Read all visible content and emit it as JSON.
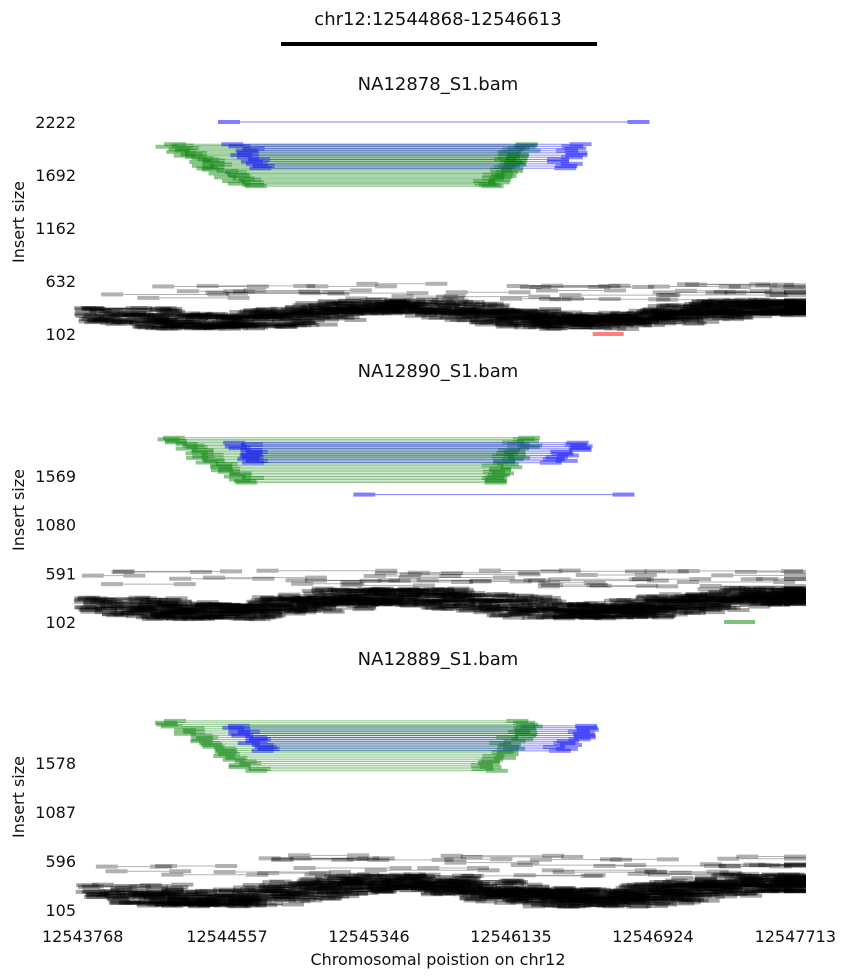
{
  "figure": {
    "title": "chr12:12544868-12546613",
    "xlabel": "Chromosomal poistion on chr12",
    "region": [
      12544868,
      12546613
    ]
  },
  "colors": {
    "normal": "#000000",
    "deletion": "#008000",
    "duplication": "#0000ff",
    "inversion": "#ff0000"
  },
  "chart_data": [
    {
      "type": "scatter",
      "title": "NA12878_S1.bam",
      "ylabel": "Insert size",
      "xlim": [
        12543768,
        12547713
      ],
      "ylim": [
        102,
        2222
      ],
      "x_ticks": [
        12543768,
        12544557,
        12545346,
        12546135,
        12546924,
        12547713
      ],
      "y_ticks": [
        102,
        632,
        1162,
        1692,
        2222
      ],
      "normal_band": [
        180,
        420
      ],
      "split_groups": [
        {
          "type": "deletion",
          "left": [
            12544000,
            12544700
          ],
          "right": [
            12546000,
            12546350
          ],
          "insert": [
            1580,
            2000
          ],
          "count": 34
        },
        {
          "type": "duplication",
          "left": [
            12544560,
            12544750
          ],
          "right": [
            12546400,
            12546600
          ],
          "insert": [
            1760,
            2000
          ],
          "count": 12
        }
      ],
      "special_pairs": [
        {
          "type": "duplication",
          "left": 12544568,
          "right": 12546843,
          "insert": 2222
        },
        {
          "type": "inversion",
          "left": 12546650,
          "right": 12546700,
          "insert": 102
        }
      ]
    },
    {
      "type": "scatter",
      "title": "NA12890_S1.bam",
      "ylabel": "Insert size",
      "xlim": [
        12543768,
        12547713
      ],
      "ylim": [
        102,
        2058
      ],
      "x_ticks": [
        12543768,
        12544557,
        12545346,
        12546135,
        12546924,
        12547713
      ],
      "y_ticks": [
        102,
        591,
        1080,
        1569
      ],
      "normal_band": [
        150,
        420
      ],
      "split_groups": [
        {
          "type": "deletion",
          "left": [
            12544000,
            12544700
          ],
          "right": [
            12546000,
            12546350
          ],
          "insert": [
            1500,
            1950
          ],
          "count": 30
        },
        {
          "type": "duplication",
          "left": [
            12544560,
            12544750
          ],
          "right": [
            12546400,
            12546600
          ],
          "insert": [
            1700,
            1900
          ],
          "count": 12
        }
      ],
      "special_pairs": [
        {
          "type": "duplication",
          "left": 12545320,
          "right": 12546760,
          "insert": 1380
        },
        {
          "type": "deletion",
          "left": 12547380,
          "right": 12547430,
          "insert": 102
        }
      ]
    },
    {
      "type": "scatter",
      "title": "NA12889_S1.bam",
      "ylabel": "Insert size",
      "xlim": [
        12543768,
        12547713
      ],
      "ylim": [
        105,
        2069
      ],
      "x_ticks": [
        12543768,
        12544557,
        12545346,
        12546135,
        12546924,
        12547713
      ],
      "y_ticks": [
        105,
        596,
        1087,
        1578
      ],
      "normal_band": [
        160,
        440
      ],
      "split_groups": [
        {
          "type": "deletion",
          "left": [
            12544000,
            12544700
          ],
          "right": [
            12546000,
            12546350
          ],
          "insert": [
            1500,
            2000
          ],
          "count": 28
        },
        {
          "type": "duplication",
          "left": [
            12544560,
            12544750
          ],
          "right": [
            12546400,
            12546650
          ],
          "insert": [
            1700,
            1950
          ],
          "count": 14
        }
      ],
      "special_pairs": []
    }
  ]
}
